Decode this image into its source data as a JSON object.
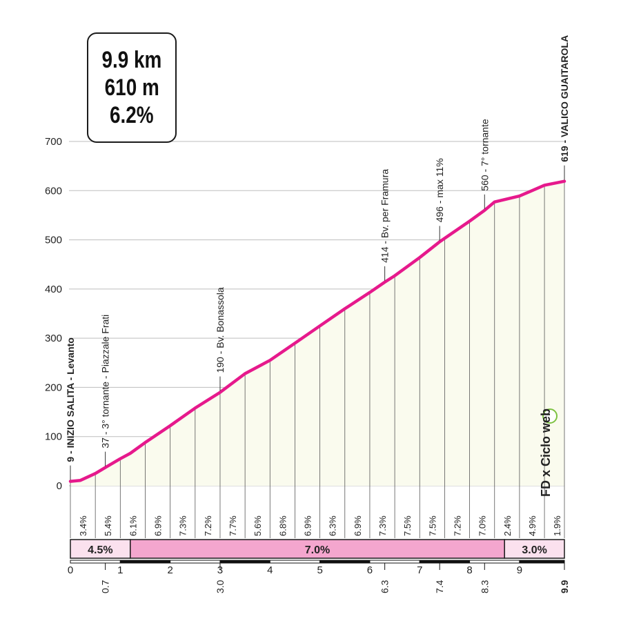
{
  "summary": {
    "distance": "9.9 km",
    "elevation_gain": "610 m",
    "avg_gradient": "6.2%"
  },
  "logo": {
    "text": "FD x Ciclo web"
  },
  "colors": {
    "profile_line": "#e6198c",
    "fill": "#fafbee",
    "segment_fill": "#f4a6ce",
    "grid": "#bdbdbd"
  },
  "chart_data": {
    "type": "area",
    "title": "",
    "xlabel": "",
    "ylabel": "",
    "xlim": [
      0,
      9.9
    ],
    "ylim": [
      0,
      700
    ],
    "y_ticks": [
      0,
      100,
      200,
      300,
      400,
      500,
      600,
      700
    ],
    "x_ticks": [
      0,
      1,
      2,
      3,
      4,
      5,
      6,
      7,
      8,
      9
    ],
    "grid": true,
    "profile": {
      "x": [
        0,
        0.2,
        0.5,
        0.7,
        1.0,
        1.2,
        1.5,
        2.0,
        2.5,
        3.0,
        3.5,
        4.0,
        4.5,
        5.0,
        5.5,
        6.0,
        6.3,
        6.5,
        7.0,
        7.4,
        7.5,
        8.0,
        8.3,
        8.5,
        9.0,
        9.5,
        9.9
      ],
      "y": [
        9,
        11,
        25,
        37,
        55,
        66,
        88,
        122,
        158,
        190,
        228,
        255,
        290,
        325,
        360,
        393,
        414,
        427,
        464,
        496,
        503,
        538,
        560,
        577,
        589,
        611,
        619
      ]
    },
    "km_gradients": [
      {
        "km": 1,
        "value": "3.4%"
      },
      {
        "km": 2,
        "value": "5.4%"
      },
      {
        "km": 3,
        "value": "6.1%"
      },
      {
        "km": 4,
        "value": "6.9%"
      },
      {
        "km": 5,
        "value": "7.3%"
      },
      {
        "km": 6,
        "value": "7.2%"
      },
      {
        "km": 7,
        "value": "7.7%"
      },
      {
        "km": 8,
        "value": "5.6%"
      },
      {
        "km": 9,
        "value": "6.8%"
      },
      {
        "km": 10,
        "value": "6.9%"
      },
      {
        "km": 11,
        "value": "6.3%"
      },
      {
        "km": 12,
        "value": "6.9%"
      },
      {
        "km": 13,
        "value": "7.3%"
      },
      {
        "km": 14,
        "value": "7.5%"
      },
      {
        "km": 15,
        "value": "7.5%"
      },
      {
        "km": 16,
        "value": "7.2%"
      },
      {
        "km": 17,
        "value": "7.0%"
      },
      {
        "km": 18,
        "value": "2.4%"
      },
      {
        "km": 19,
        "value": "4.9%"
      },
      {
        "km": 20,
        "value": "1.9%"
      }
    ],
    "segments": [
      {
        "from": 0,
        "to": 1.2,
        "label": "4.5%"
      },
      {
        "from": 1.2,
        "to": 8.7,
        "label": "7.0%"
      },
      {
        "from": 8.7,
        "to": 9.9,
        "label": "3.0%"
      }
    ],
    "waypoints": [
      {
        "x": 0,
        "altitude": 9,
        "label": "9 - INIZIO SALITA - Levanto",
        "bold": true
      },
      {
        "x": 0.7,
        "altitude": 37,
        "label": "37 - 3° tornante - Piazzale Frati",
        "bold": false
      },
      {
        "x": 3.0,
        "altitude": 190,
        "label": "190 - Bv. Bonassola",
        "bold": false
      },
      {
        "x": 6.3,
        "altitude": 414,
        "label": "414 - Bv. per Framura",
        "bold": false
      },
      {
        "x": 7.4,
        "altitude": 496,
        "label": "496 - max 11%",
        "bold": false
      },
      {
        "x": 8.3,
        "altitude": 560,
        "label": "560 - 7° tornante",
        "bold": false
      },
      {
        "x": 9.9,
        "altitude": 619,
        "label": "619 - VALICO GUAITAROLA",
        "bold": true
      }
    ],
    "extra_x_labels": [
      {
        "x": 0.7,
        "label": "0.7"
      },
      {
        "x": 3.0,
        "label": "3.0"
      },
      {
        "x": 6.3,
        "label": "6.3"
      },
      {
        "x": 7.4,
        "label": "7.4"
      },
      {
        "x": 8.3,
        "label": "8.3"
      },
      {
        "x": 9.9,
        "label": "9.9",
        "bold": true
      }
    ]
  }
}
